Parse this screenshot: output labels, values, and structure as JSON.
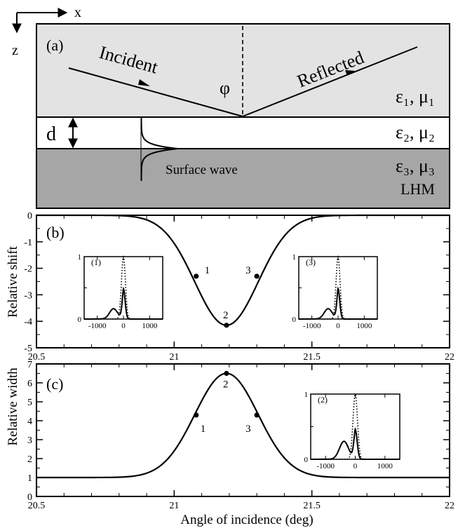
{
  "figure": {
    "panel_a": {
      "label": "(a)",
      "axis_x": "x",
      "axis_z": "z",
      "incident": "Incident",
      "reflected": "Reflected",
      "angle": "φ",
      "thickness": "d",
      "surface_wave": "Surface wave",
      "layer1": "ε₁, μ₁",
      "layer2": "ε₂, μ₂",
      "layer3": "ε₃, μ₃",
      "layer3_note": "LHM",
      "colors": {
        "layer1": "#e3e3e3",
        "layer2": "#ffffff",
        "layer3": "#a6a6a6"
      }
    },
    "panel_b": {
      "label": "(b)",
      "ylabel": "Relative shift"
    },
    "panel_c": {
      "label": "(c)",
      "ylabel": "Relative width",
      "xlabel": "Angle of incidence (deg)"
    },
    "inset_b1": {
      "label": "(1)"
    },
    "inset_b3": {
      "label": "(3)"
    },
    "inset_c2": {
      "label": "(2)"
    }
  },
  "chart_data": [
    {
      "type": "line",
      "panel": "(b)",
      "ylabel": "Relative shift",
      "xlim": [
        20.5,
        22
      ],
      "ylim": [
        -5,
        0
      ],
      "x_ticks": [
        20.5,
        21,
        21.5,
        22
      ],
      "y_ticks": [
        0,
        -1,
        -2,
        -3,
        -4,
        -5
      ],
      "curve": {
        "type": "gaussian",
        "baseline": 0,
        "amplitude": -4.15,
        "center": 21.19,
        "sigma": 0.115
      },
      "markers": [
        {
          "label": "1",
          "x": 21.08,
          "y": -2.3
        },
        {
          "label": "2",
          "x": 21.19,
          "y": -4.15
        },
        {
          "label": "3",
          "x": 21.3,
          "y": -2.3
        }
      ]
    },
    {
      "type": "line",
      "panel": "(c)",
      "ylabel": "Relative width",
      "xlabel": "Angle of incidence (deg)",
      "xlim": [
        20.5,
        22
      ],
      "ylim": [
        0,
        7
      ],
      "x_ticks": [
        20.5,
        21,
        21.5,
        22
      ],
      "y_ticks": [
        0,
        1,
        2,
        3,
        4,
        5,
        6,
        7
      ],
      "curve": {
        "type": "gaussian",
        "baseline": 1,
        "amplitude": 5.5,
        "center": 21.19,
        "sigma": 0.115
      },
      "markers": [
        {
          "label": "1",
          "x": 21.08,
          "y": 4.3
        },
        {
          "label": "2",
          "x": 21.19,
          "y": 6.5
        },
        {
          "label": "3",
          "x": 21.3,
          "y": 4.3
        }
      ]
    },
    {
      "type": "line",
      "panel": "inset (1)",
      "xlim": [
        -1500,
        1500
      ],
      "ylim": [
        0,
        1
      ],
      "x_ticks": [
        -1000,
        0,
        1000
      ],
      "y_ticks": [
        0,
        1
      ],
      "series": [
        {
          "style": "dotted",
          "kind": "gaussian",
          "center": 0,
          "width": 75,
          "peak": 1
        },
        {
          "style": "solid",
          "kind": "shifted",
          "peak": 0.48,
          "hump": 0.16,
          "hump_x": -380
        }
      ]
    },
    {
      "type": "line",
      "panel": "inset (3)",
      "xlim": [
        -1500,
        1500
      ],
      "ylim": [
        0,
        1
      ],
      "x_ticks": [
        -1000,
        0,
        1000
      ],
      "y_ticks": [
        0,
        1
      ],
      "series": [
        {
          "style": "dotted",
          "kind": "gaussian",
          "center": 0,
          "width": 75,
          "peak": 1
        },
        {
          "style": "solid",
          "kind": "shifted",
          "peak": 0.48,
          "hump": 0.16,
          "hump_x": -380
        }
      ]
    },
    {
      "type": "line",
      "panel": "inset (2)",
      "xlim": [
        -1500,
        1500
      ],
      "ylim": [
        0,
        1
      ],
      "x_ticks": [
        -1000,
        0,
        1000
      ],
      "y_ticks": [
        0,
        1
      ],
      "series": [
        {
          "style": "dotted",
          "kind": "gaussian",
          "center": 0,
          "width": 75,
          "peak": 1
        },
        {
          "style": "solid",
          "kind": "shifted",
          "peak": 0.45,
          "hump": 0.27,
          "hump_x": -380
        }
      ]
    }
  ]
}
